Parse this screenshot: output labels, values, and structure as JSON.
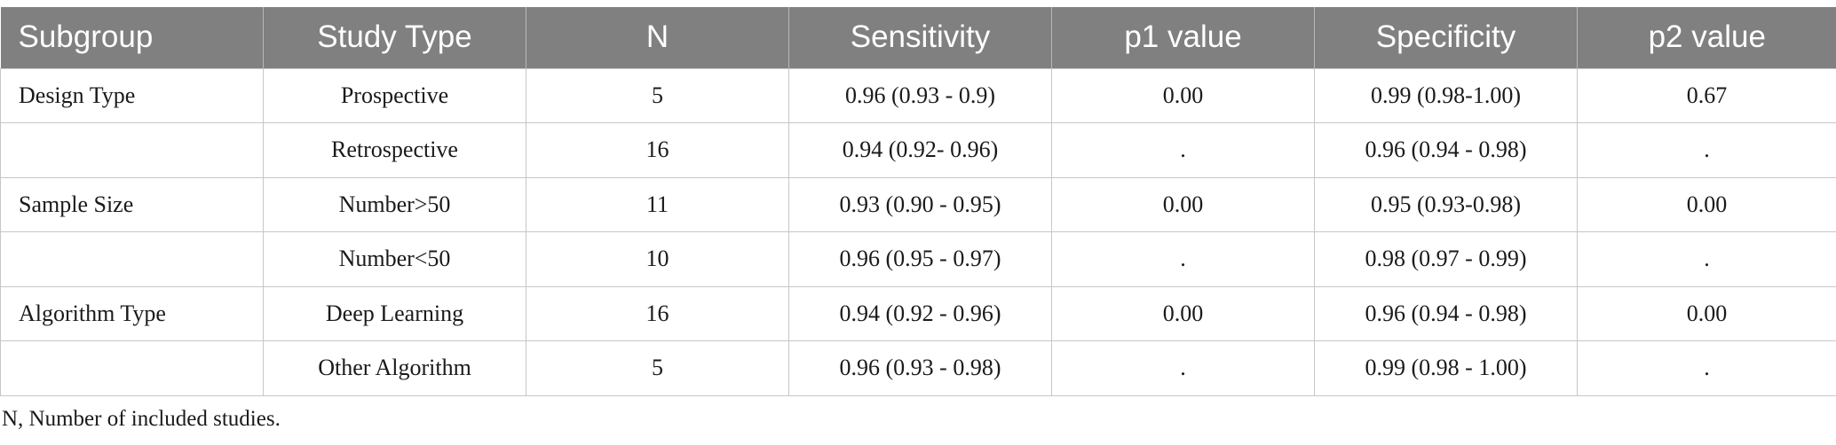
{
  "table": {
    "headers": [
      "Subgroup",
      "Study Type",
      "N",
      "Sensitivity",
      "p1 value",
      "Specificity",
      "p2 value"
    ],
    "rows": [
      [
        "Design Type",
        "Prospective",
        "5",
        "0.96 (0.93 - 0.9)",
        "0.00",
        "0.99 (0.98-1.00)",
        "0.67"
      ],
      [
        "",
        "Retrospective",
        "16",
        "0.94 (0.92- 0.96)",
        ".",
        "0.96 (0.94 - 0.98)",
        "."
      ],
      [
        "Sample Size",
        "Number>50",
        "11",
        "0.93 (0.90 - 0.95)",
        "0.00",
        "0.95 (0.93-0.98)",
        "0.00"
      ],
      [
        "",
        "Number<50",
        "10",
        "0.96 (0.95 - 0.97)",
        ".",
        "0.98 (0.97 - 0.99)",
        "."
      ],
      [
        "Algorithm Type",
        "Deep Learning",
        "16",
        "0.94 (0.92 - 0.96)",
        "0.00",
        "0.96 (0.94 - 0.98)",
        "0.00"
      ],
      [
        "",
        "Other Algorithm",
        "5",
        "0.96 (0.93 - 0.98)",
        ".",
        "0.99 (0.98 - 1.00)",
        "."
      ]
    ]
  },
  "footnote": "N, Number of included studies.",
  "colors": {
    "header_bg": "#808080",
    "header_text": "#ffffff",
    "border": "#c7c7c7"
  }
}
